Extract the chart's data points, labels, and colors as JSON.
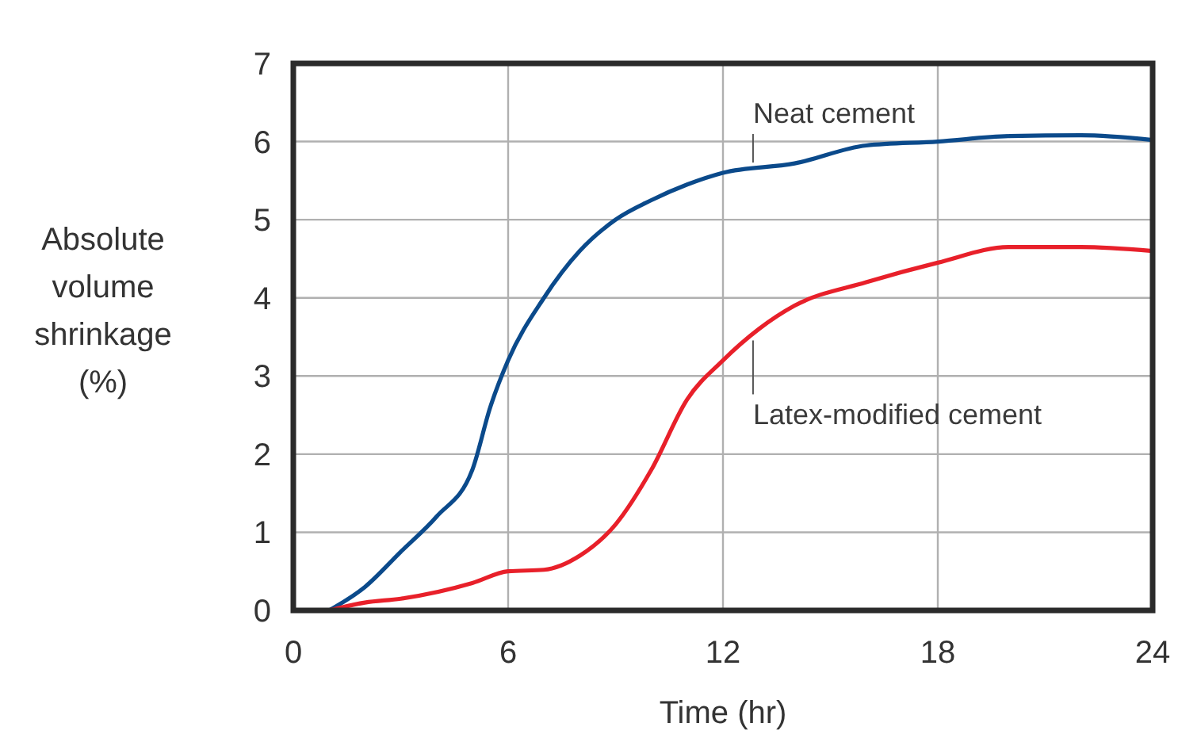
{
  "chart_data": {
    "type": "line",
    "xlabel": "Time (hr)",
    "ylabel": "Absolute volume shrinkage (%)",
    "xlim": [
      0,
      24
    ],
    "xticks": [
      0,
      6,
      12,
      18,
      24
    ],
    "ylim": [
      0,
      7
    ],
    "yticks": [
      0,
      1,
      2,
      3,
      4,
      5,
      6,
      7
    ],
    "grid": true,
    "marker": "none",
    "line_style": "solid",
    "series": [
      {
        "name": "Neat cement",
        "color": "#0b4a8b",
        "x": [
          1,
          2,
          3,
          4,
          5,
          5.5,
          6,
          7,
          8,
          9,
          10,
          11,
          12,
          14,
          16,
          18,
          20,
          22,
          24
        ],
        "values": [
          0,
          0.3,
          0.75,
          1.2,
          1.8,
          2.6,
          3.2,
          4.0,
          4.6,
          5.0,
          5.25,
          5.45,
          5.6,
          5.72,
          5.95,
          6.0,
          6.07,
          6.08,
          6.02
        ]
      },
      {
        "name": "Latex-modified cement",
        "color": "#e8202a",
        "x": [
          1,
          2,
          3,
          5,
          6,
          7,
          8,
          9,
          10,
          11,
          12,
          13,
          14,
          16,
          18,
          20,
          22,
          24
        ],
        "values": [
          0,
          0.1,
          0.15,
          0.35,
          0.5,
          0.52,
          0.7,
          1.1,
          1.8,
          2.7,
          3.2,
          3.6,
          3.9,
          4.2,
          4.45,
          4.65,
          4.65,
          4.6
        ]
      }
    ]
  }
}
